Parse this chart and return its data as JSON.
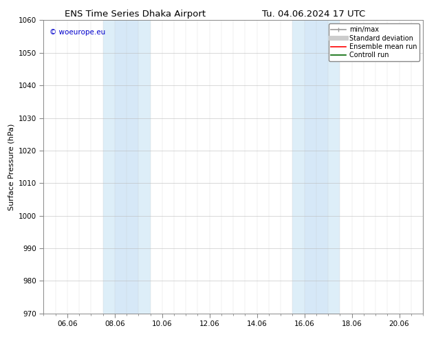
{
  "title_left": "ENS Time Series Dhaka Airport",
  "title_right": "Tu. 04.06.2024 17 UTC",
  "ylabel": "Surface Pressure (hPa)",
  "ylim": [
    970,
    1060
  ],
  "yticks": [
    970,
    980,
    990,
    1000,
    1010,
    1020,
    1030,
    1040,
    1050,
    1060
  ],
  "xtick_labels": [
    "06.06",
    "08.06",
    "10.06",
    "12.06",
    "14.06",
    "16.06",
    "18.06",
    "20.06"
  ],
  "xtick_positions": [
    1.0,
    3.0,
    5.0,
    7.0,
    9.0,
    11.0,
    13.0,
    15.0
  ],
  "xlim": [
    0.0,
    16.0
  ],
  "shaded_bands": [
    {
      "x_start": 2.5,
      "x_end": 3.0,
      "color": "#ddeef8"
    },
    {
      "x_start": 3.0,
      "x_end": 4.0,
      "color": "#d6e8f7"
    },
    {
      "x_start": 4.0,
      "x_end": 4.5,
      "color": "#ddeef8"
    },
    {
      "x_start": 10.5,
      "x_end": 11.0,
      "color": "#ddeef8"
    },
    {
      "x_start": 11.0,
      "x_end": 12.0,
      "color": "#d6e8f7"
    },
    {
      "x_start": 12.0,
      "x_end": 12.5,
      "color": "#ddeef8"
    }
  ],
  "background_color": "#ffffff",
  "plot_bg_color": "#ffffff",
  "grid_color": "#bbbbbb",
  "watermark_text": "© woeurope.eu",
  "watermark_color": "#0000cc",
  "legend_items": [
    {
      "label": "min/max",
      "color": "#999999",
      "lw": 1.2
    },
    {
      "label": "Standard deviation",
      "color": "#cccccc",
      "lw": 5
    },
    {
      "label": "Ensemble mean run",
      "color": "#ff0000",
      "lw": 1.2
    },
    {
      "label": "Controll run",
      "color": "#006600",
      "lw": 1.2
    }
  ],
  "title_fontsize": 9.5,
  "axis_label_fontsize": 8,
  "tick_fontsize": 7.5,
  "legend_fontsize": 7,
  "watermark_fontsize": 7.5
}
